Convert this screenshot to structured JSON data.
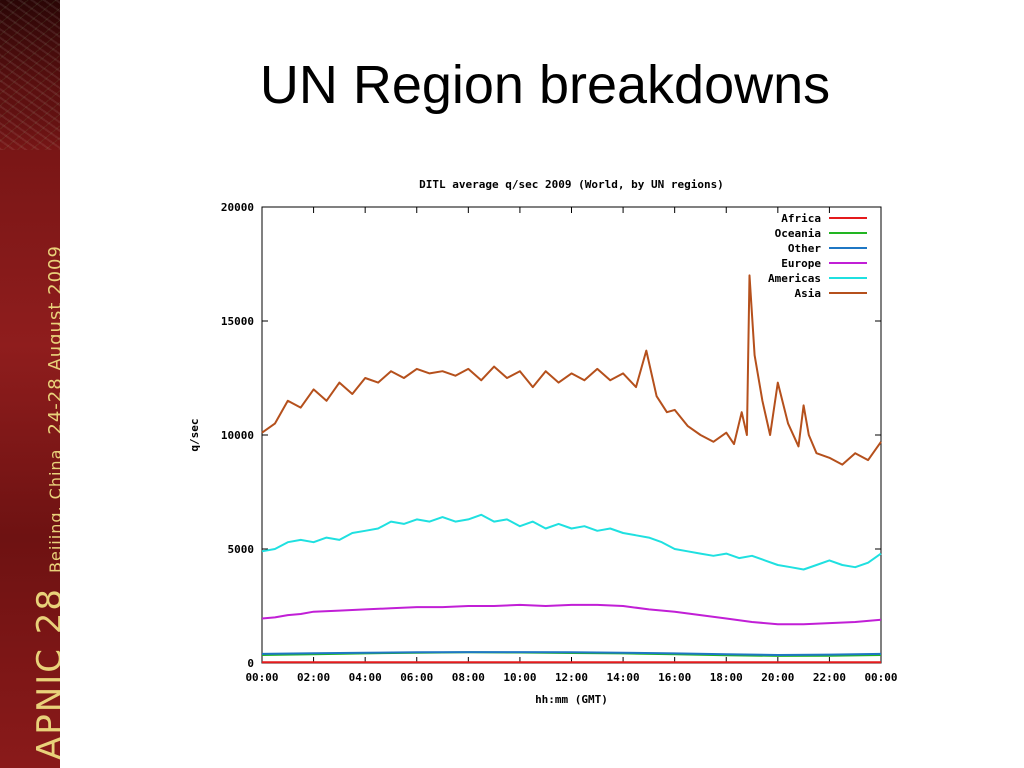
{
  "sidebar": {
    "brand": "APNIC 28",
    "location": "Beijing, China",
    "dates": "24-28 August 2009"
  },
  "slide": {
    "title": "UN Region breakdowns"
  },
  "chart_data": {
    "type": "line",
    "title": "DITL average q/sec 2009 (World, by UN regions)",
    "xlabel": "hh:mm (GMT)",
    "ylabel": "q/sec",
    "xlim": [
      0,
      24
    ],
    "ylim": [
      0,
      20000
    ],
    "x_ticks": [
      0,
      2,
      4,
      6,
      8,
      10,
      12,
      14,
      16,
      18,
      20,
      22,
      24
    ],
    "x_tick_labels": [
      "00:00",
      "02:00",
      "04:00",
      "06:00",
      "08:00",
      "10:00",
      "12:00",
      "14:00",
      "16:00",
      "18:00",
      "20:00",
      "22:00",
      "00:00"
    ],
    "y_ticks": [
      0,
      5000,
      10000,
      15000,
      20000
    ],
    "y_tick_labels": [
      "0",
      "5000",
      "10000",
      "15000",
      "20000"
    ],
    "legend_position": "top-right",
    "grid": false,
    "series": [
      {
        "name": "Africa",
        "color": "#e41a1c",
        "x": [
          0,
          4,
          8,
          12,
          16,
          20,
          24
        ],
        "y": [
          30,
          30,
          35,
          35,
          30,
          30,
          30
        ]
      },
      {
        "name": "Oceania",
        "color": "#22b522",
        "x": [
          0,
          2,
          4,
          6,
          8,
          10,
          12,
          14,
          16,
          18,
          20,
          22,
          24
        ],
        "y": [
          350,
          380,
          420,
          450,
          470,
          460,
          440,
          420,
          380,
          340,
          310,
          320,
          350
        ]
      },
      {
        "name": "Other",
        "color": "#1f77c4",
        "x": [
          0,
          2,
          4,
          6,
          8,
          10,
          12,
          14,
          16,
          18,
          20,
          22,
          24
        ],
        "y": [
          400,
          430,
          450,
          470,
          480,
          480,
          470,
          450,
          420,
          380,
          350,
          370,
          400
        ]
      },
      {
        "name": "Europe",
        "color": "#c11fd6",
        "x": [
          0,
          0.5,
          1,
          1.5,
          2,
          3,
          4,
          5,
          6,
          7,
          8,
          9,
          10,
          11,
          12,
          13,
          14,
          15,
          16,
          17,
          18,
          19,
          20,
          21,
          22,
          23,
          24
        ],
        "y": [
          1950,
          2000,
          2100,
          2150,
          2250,
          2300,
          2350,
          2400,
          2450,
          2450,
          2500,
          2500,
          2550,
          2500,
          2550,
          2550,
          2500,
          2350,
          2250,
          2100,
          1950,
          1800,
          1700,
          1700,
          1750,
          1800,
          1900
        ]
      },
      {
        "name": "Americas",
        "color": "#1fe0e0",
        "x": [
          0,
          0.5,
          1,
          1.5,
          2,
          2.5,
          3,
          3.5,
          4,
          4.5,
          5,
          5.5,
          6,
          6.5,
          7,
          7.5,
          8,
          8.5,
          9,
          9.5,
          10,
          10.5,
          11,
          11.5,
          12,
          12.5,
          13,
          13.5,
          14,
          14.5,
          15,
          15.5,
          16,
          16.5,
          17,
          17.5,
          18,
          18.5,
          19,
          19.5,
          20,
          20.5,
          21,
          21.5,
          22,
          22.5,
          23,
          23.5,
          24
        ],
        "y": [
          4900,
          5000,
          5300,
          5400,
          5300,
          5500,
          5400,
          5700,
          5800,
          5900,
          6200,
          6100,
          6300,
          6200,
          6400,
          6200,
          6300,
          6500,
          6200,
          6300,
          6000,
          6200,
          5900,
          6100,
          5900,
          6000,
          5800,
          5900,
          5700,
          5600,
          5500,
          5300,
          5000,
          4900,
          4800,
          4700,
          4800,
          4600,
          4700,
          4500,
          4300,
          4200,
          4100,
          4300,
          4500,
          4300,
          4200,
          4400,
          4800
        ]
      },
      {
        "name": "Asia",
        "color": "#b5501c",
        "x": [
          0,
          0.5,
          1,
          1.5,
          2,
          2.5,
          3,
          3.5,
          4,
          4.5,
          5,
          5.5,
          6,
          6.5,
          7,
          7.5,
          8,
          8.5,
          9,
          9.5,
          10,
          10.5,
          11,
          11.5,
          12,
          12.5,
          13,
          13.5,
          14,
          14.5,
          14.9,
          15.3,
          15.7,
          16,
          16.5,
          17,
          17.5,
          18,
          18.3,
          18.6,
          18.8,
          18.9,
          19.1,
          19.4,
          19.7,
          20,
          20.4,
          20.8,
          21,
          21.2,
          21.5,
          22,
          22.5,
          23,
          23.5,
          24
        ],
        "y": [
          10100,
          10500,
          11500,
          11200,
          12000,
          11500,
          12300,
          11800,
          12500,
          12300,
          12800,
          12500,
          12900,
          12700,
          12800,
          12600,
          12900,
          12400,
          13000,
          12500,
          12800,
          12100,
          12800,
          12300,
          12700,
          12400,
          12900,
          12400,
          12700,
          12100,
          13700,
          11700,
          11000,
          11100,
          10400,
          10000,
          9700,
          10100,
          9600,
          11000,
          10000,
          17000,
          13500,
          11500,
          10000,
          12300,
          10500,
          9500,
          11300,
          10000,
          9200,
          9000,
          8700,
          9200,
          8900,
          9700
        ]
      }
    ]
  }
}
